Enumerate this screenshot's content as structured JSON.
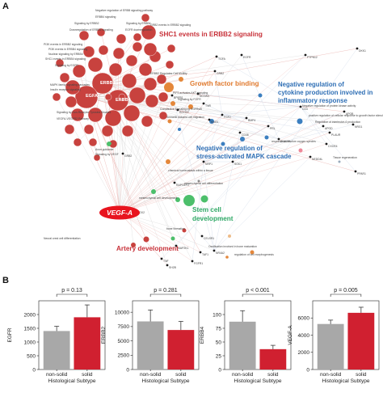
{
  "panel_a": {
    "letter": "A",
    "cluster_labels": {
      "shc1": "SHC1 events in ERBB2 signaling",
      "growth": "Growth factor binding",
      "negreg_cytokine_line1": "Negative regulation of",
      "negreg_cytokine_line2": "cytokine production involved in",
      "negreg_cytokine_line3": "inflammatory response",
      "negreg_mapk_line1": "Negative regulation of",
      "negreg_mapk_line2": "stress-activated MAPK cascade",
      "stem_line1": "Stem cell",
      "stem_line2": "development",
      "artery": "Artery development"
    },
    "hub_labels": {
      "erbb2": "ERBB2",
      "egfa": "EGFA",
      "erbb4": "ERBB4",
      "vegfa": "VEGF-A"
    },
    "gene_labels": [
      "GRB2",
      "NCOA3",
      "TNR",
      "FGF2",
      "BPIFB1",
      "ROCK2",
      "TGFA",
      "EGFR",
      "PTPN12",
      "DKK1",
      "CD4",
      "APOD",
      "APOB",
      "NRG1",
      "NEDD4L",
      "PLAUR",
      "CXCR4",
      "SMAD5",
      "PRL",
      "CD38",
      "BMP4",
      "PPAR1",
      "KNG1",
      "SGK1",
      "NRP1",
      "RAPGEF2",
      "MAP2K1",
      "TNF",
      "FGFR1",
      "CELSR1",
      "TAF1",
      "NR4A2",
      "SH2B",
      "SOX2"
    ],
    "term_labels": [
      "Negative regulation of ERBB signaling pathway",
      "ERBB4 signaling",
      "Signaling by ERBB2",
      "Signaling by ERBB4",
      "Downregulation of ERBB2 signaling",
      "EGFR downregulation",
      "GRB2 events in ERBB2 signaling",
      "PI3K events in ERBB2 signaling",
      "PI3K events in ERBB4 signaling",
      "Nuclear signaling by ERBB4",
      "SHC1 events in ERBB4 signaling",
      "Signaling by EGFR",
      "MAPK family signaling cascades",
      "Insulin receptor signaling",
      "Signaling by Non-Receptor Tyrosine Kinases",
      "VEGFA-VEGFR2 Pathway",
      "ERBB2 Regulates Cell Motility",
      "Constitutive Signaling by EGFRvIII",
      "Sema4D induced cell migration",
      "PIP3 activates AKT signaling",
      "Signaling by FGFR",
      "Axon guidance",
      "Signaling by VEGF",
      "mesenchymal cell development",
      "mesenchymal cell differentiation",
      "bone formation",
      "Neural crest cell differentiation",
      "chemical homeostasis within a tissue",
      "regulation of cell morphogenesis",
      "Ossification involved in bone maturation",
      "response to reactive oxygen species",
      "Negative regulation of protein kinase activity",
      "positive regulation of cellular response to growth factor stimulus",
      "Regulation of interleukin-6 production",
      "Tissue regeneration"
    ]
  },
  "panel_b": {
    "letter": "B",
    "xlabel": "Histological Subtype",
    "categories": [
      "non-solid",
      "solid"
    ],
    "colors": {
      "nonsolid": "#a8a8a8",
      "solid": "#d02030"
    }
  },
  "chart_data": [
    {
      "type": "bar",
      "title": "",
      "ylabel": "EGFR",
      "xlabel": "Histological Subtype",
      "categories": [
        "non-solid",
        "solid"
      ],
      "values": [
        1400,
        1900
      ],
      "errors": [
        170,
        450
      ],
      "ylim": [
        0,
        2500
      ],
      "yticks": [
        "0",
        "500",
        "1000",
        "1500",
        "2000"
      ],
      "pvalue": "p = 0.13"
    },
    {
      "type": "bar",
      "title": "",
      "ylabel": "ERBB2",
      "xlabel": "Histological Subtype",
      "categories": [
        "non-solid",
        "solid"
      ],
      "values": [
        8400,
        6900
      ],
      "errors": [
        2000,
        1500
      ],
      "ylim": [
        0,
        12000
      ],
      "yticks": [
        "0",
        "2500",
        "5000",
        "7500",
        "10000"
      ],
      "pvalue": "p = 0.281"
    },
    {
      "type": "bar",
      "title": "",
      "ylabel": "ERBB4",
      "xlabel": "Histological Subtype",
      "categories": [
        "non-solid",
        "solid"
      ],
      "values": [
        87,
        37
      ],
      "errors": [
        20,
        7
      ],
      "ylim": [
        0,
        125
      ],
      "yticks": [
        "0",
        "25",
        "50",
        "75",
        "100"
      ],
      "pvalue": "p < 0.001"
    },
    {
      "type": "bar",
      "title": "",
      "ylabel": "VEGF-A",
      "xlabel": "Histological Subtype",
      "categories": [
        "non-solid",
        "solid"
      ],
      "values": [
        5300,
        6600
      ],
      "errors": [
        450,
        650
      ],
      "ylim": [
        0,
        8000
      ],
      "yticks": [
        "0",
        "2000",
        "4000",
        "6000"
      ],
      "pvalue": "p = 0.005"
    }
  ]
}
